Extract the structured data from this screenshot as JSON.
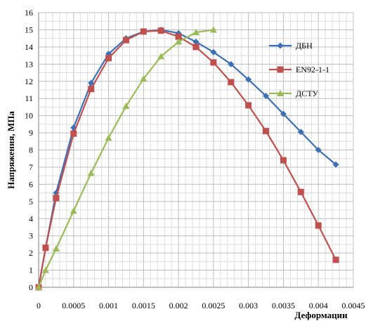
{
  "chart_data": {
    "type": "line",
    "title": "",
    "xlabel": "Деформации",
    "ylabel": "Напряжения, МПа",
    "xlim": [
      0,
      0.0045
    ],
    "ylim": [
      0,
      16
    ],
    "x_ticks": [
      "0",
      "0.0005",
      "0.001",
      "0.0015",
      "0.002",
      "0.0025",
      "0.003",
      "0.0035",
      "0.004",
      "0.0045"
    ],
    "y_ticks": [
      "0",
      "1",
      "2",
      "3",
      "4",
      "5",
      "6",
      "7",
      "8",
      "9",
      "10",
      "11",
      "12",
      "13",
      "14",
      "15",
      "16"
    ],
    "grid": true,
    "legend_position": "right",
    "series": [
      {
        "name": "ДБН",
        "color": "#3d6fb6",
        "marker": "diamond",
        "x": [
          0,
          0.0001,
          0.00025,
          0.0005,
          0.00075,
          0.001,
          0.00125,
          0.0015,
          0.00175,
          0.002,
          0.00225,
          0.0025,
          0.00275,
          0.003,
          0.00325,
          0.0035,
          0.00375,
          0.004,
          0.00425
        ],
        "y": [
          0,
          2.3,
          5.5,
          9.3,
          11.9,
          13.6,
          14.5,
          14.9,
          15.0,
          14.8,
          14.3,
          13.7,
          13.0,
          12.1,
          11.15,
          10.1,
          9.05,
          8.0,
          7.15
        ]
      },
      {
        "name": "EN92-1-1",
        "color": "#c0504d",
        "marker": "square",
        "x": [
          0,
          0.0001,
          0.00025,
          0.0005,
          0.00075,
          0.001,
          0.00125,
          0.0015,
          0.00175,
          0.002,
          0.00225,
          0.0025,
          0.00275,
          0.003,
          0.00325,
          0.0035,
          0.00375,
          0.004,
          0.00425
        ],
        "y": [
          0,
          2.3,
          5.2,
          8.95,
          11.55,
          13.35,
          14.4,
          14.9,
          14.95,
          14.6,
          14.0,
          13.1,
          11.95,
          10.6,
          9.1,
          7.4,
          5.55,
          3.6,
          1.6
        ]
      },
      {
        "name": "ДСТУ",
        "color": "#9bbb59",
        "marker": "triangle",
        "x": [
          0,
          0.0001,
          0.00025,
          0.0005,
          0.00075,
          0.001,
          0.00125,
          0.0015,
          0.00175,
          0.002,
          0.00225,
          0.0025
        ],
        "y": [
          0,
          1.0,
          2.25,
          4.45,
          6.65,
          8.7,
          10.55,
          12.15,
          13.45,
          14.3,
          14.85,
          15.0
        ]
      }
    ]
  }
}
